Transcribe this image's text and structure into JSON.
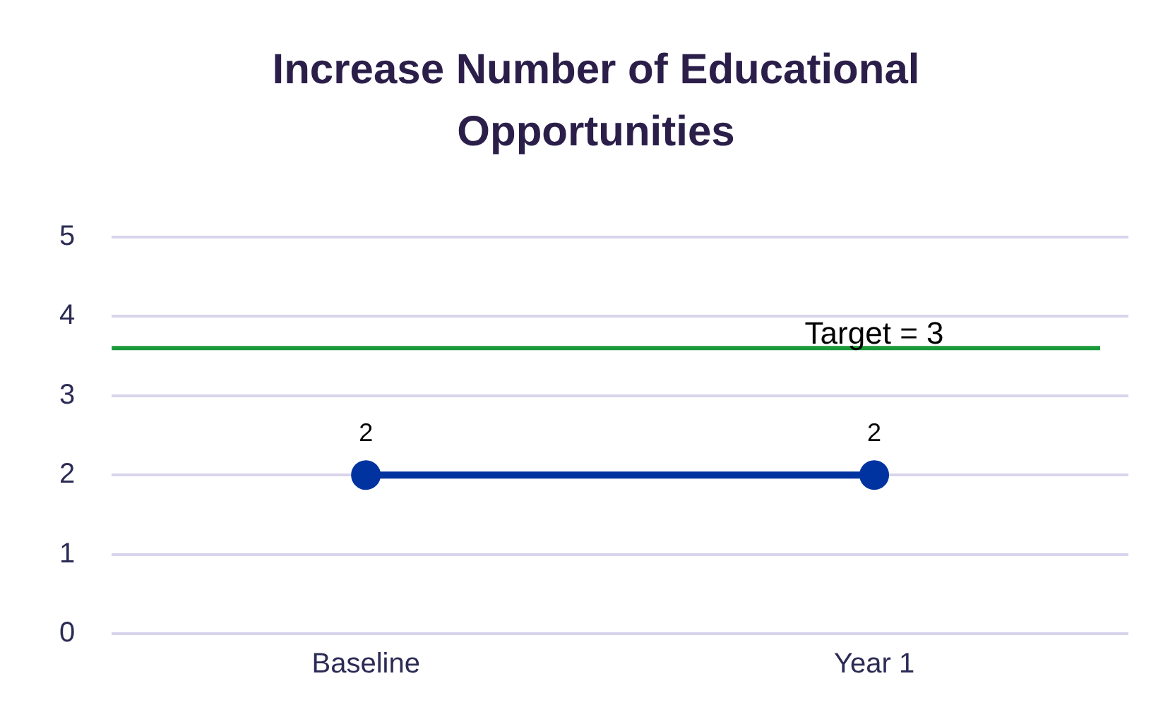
{
  "chart_data": {
    "type": "line",
    "title": "Increase Number of Educational Opportunities",
    "categories": [
      "Baseline",
      "Year 1"
    ],
    "series": [
      {
        "color": "#0033a0",
        "values": [
          2,
          2
        ]
      }
    ],
    "ylim": [
      0,
      5
    ],
    "yticks": [
      0,
      1,
      2,
      3,
      4,
      5
    ],
    "grid": "y",
    "legend": false,
    "marker": "circle",
    "line_style": "solid",
    "data_labels": true,
    "ref_lines": [
      {
        "axis": "y",
        "value": 3.6,
        "color": "#1a9a3a"
      }
    ],
    "annotations": [
      {
        "text": "Target = 3",
        "x": "Year 1",
        "y": 3.6
      }
    ]
  }
}
